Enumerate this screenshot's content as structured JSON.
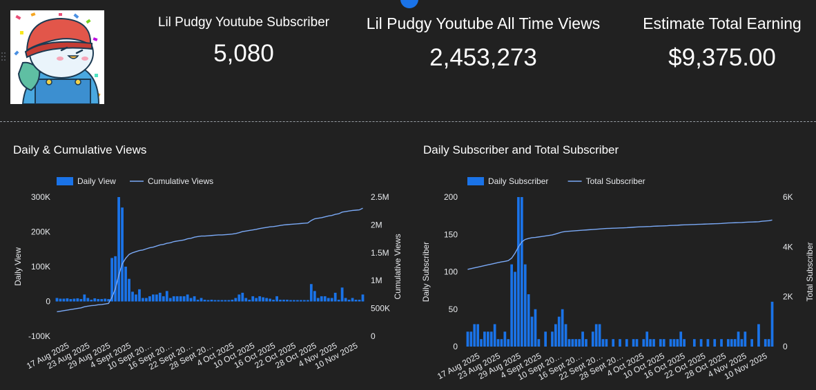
{
  "kpis": [
    {
      "label": "Lil Pudgy Youtube Subscriber",
      "value": "5,080"
    },
    {
      "label": "Lil Pudgy Youtube All Time Views",
      "value": "2,453,273"
    },
    {
      "label": "Estimate Total Earning",
      "value": "$9,375.00"
    }
  ],
  "colors": {
    "background": "#212121",
    "bar": "#1a73e8",
    "line": "#7baaf7",
    "text": "#e8eaed"
  },
  "icons": {
    "avatar": "lil-pudgy-penguin-avatar",
    "handle": "drag-handle-icon"
  },
  "chart_data": [
    {
      "type": "bar",
      "title": "Daily & Cumulative Views",
      "x_tick_labels": [
        "17 Aug 2025",
        "23 Aug 2025",
        "29 Aug 2025",
        "4 Sept 2025",
        "10 Sept 20…",
        "16 Sept 20…",
        "22 Sept 20…",
        "28 Sept 20…",
        "4 Oct 2025",
        "10 Oct 2025",
        "16 Oct 2025",
        "22 Oct 2025",
        "28 Oct 2025",
        "4 Nov 2025",
        "10 Nov 2025"
      ],
      "left_axis": {
        "label": "Daily View",
        "ticks": [
          "300K",
          "200K",
          "100K",
          "0",
          "-100K"
        ],
        "range": [
          -100000,
          300000
        ]
      },
      "right_axis": {
        "label": "Cumulative Views",
        "ticks": [
          "2.5M",
          "2M",
          "1.5M",
          "1M",
          "500K",
          "0"
        ],
        "range": [
          0,
          2500000
        ]
      },
      "legend": "top-left",
      "grid": false,
      "series": [
        {
          "name": "Daily View",
          "type": "bar",
          "values": [
            10000,
            8000,
            8000,
            9000,
            7000,
            8000,
            9000,
            7000,
            20000,
            10000,
            5000,
            9000,
            7000,
            7000,
            8000,
            7000,
            125000,
            130000,
            300000,
            270000,
            100000,
            65000,
            28000,
            20000,
            35000,
            10000,
            10000,
            15000,
            20000,
            20000,
            25000,
            15000,
            30000,
            10000,
            15000,
            15000,
            15000,
            15000,
            20000,
            10000,
            15000,
            5000,
            10000,
            5000,
            4000,
            5000,
            4000,
            4000,
            4000,
            4000,
            4000,
            5000,
            10000,
            20000,
            25000,
            10000,
            5000,
            15000,
            10000,
            15000,
            12000,
            10000,
            8000,
            5000,
            15000,
            5000,
            5000,
            5000,
            4000,
            4000,
            4000,
            4000,
            4000,
            4000,
            50000,
            30000,
            10000,
            15000,
            15000,
            10000,
            10000,
            25000,
            5000,
            40000,
            10000,
            5000,
            10000,
            5000,
            5000,
            20000
          ]
        },
        {
          "name": "Cumulative Views",
          "type": "line",
          "values": [
            440000,
            450000,
            460000,
            470000,
            480000,
            490000,
            500000,
            510000,
            530000,
            540000,
            550000,
            555000,
            565000,
            570000,
            580000,
            590000,
            700000,
            850000,
            1100000,
            1300000,
            1400000,
            1470000,
            1500000,
            1520000,
            1540000,
            1550000,
            1570000,
            1590000,
            1600000,
            1620000,
            1640000,
            1650000,
            1670000,
            1680000,
            1700000,
            1710000,
            1720000,
            1730000,
            1750000,
            1760000,
            1780000,
            1790000,
            1800000,
            1800000,
            1805000,
            1810000,
            1815000,
            1820000,
            1820000,
            1825000,
            1830000,
            1835000,
            1845000,
            1860000,
            1880000,
            1890000,
            1900000,
            1910000,
            1920000,
            1935000,
            1945000,
            1955000,
            1965000,
            1970000,
            1980000,
            1990000,
            2000000,
            2005000,
            2010000,
            2015000,
            2020000,
            2025000,
            2030000,
            2035000,
            2080000,
            2110000,
            2120000,
            2130000,
            2145000,
            2160000,
            2170000,
            2190000,
            2200000,
            2230000,
            2240000,
            2250000,
            2260000,
            2265000,
            2270000,
            2300000
          ]
        }
      ]
    },
    {
      "type": "bar",
      "title": "Daily Subscriber and Total Subscriber",
      "x_tick_labels": [
        "17 Aug 2025",
        "23 Aug 2025",
        "29 Aug 2025",
        "4 Sept 2025",
        "10 Sept 20…",
        "16 Sept 20…",
        "22 Sept 20…",
        "28 Sept 20…",
        "4 Oct 2025",
        "10 Oct 2025",
        "16 Oct 2025",
        "22 Oct 2025",
        "28 Oct 2025",
        "4 Nov 2025",
        "10 Nov 2025"
      ],
      "left_axis": {
        "label": "Daily Subscriber",
        "ticks": [
          "200",
          "150",
          "100",
          "50",
          "0"
        ],
        "range": [
          0,
          200
        ]
      },
      "right_axis": {
        "label": "Total Subscriber",
        "ticks": [
          "6K",
          "4K",
          "2K",
          "0"
        ],
        "range": [
          0,
          6000
        ]
      },
      "legend": "top-left",
      "grid": false,
      "series": [
        {
          "name": "Daily Subscriber",
          "type": "bar",
          "values": [
            20,
            20,
            30,
            30,
            10,
            20,
            20,
            20,
            30,
            10,
            10,
            20,
            10,
            110,
            100,
            200,
            200,
            110,
            70,
            40,
            50,
            10,
            0,
            20,
            0,
            20,
            30,
            40,
            50,
            30,
            10,
            10,
            10,
            10,
            20,
            10,
            0,
            20,
            30,
            30,
            10,
            10,
            0,
            10,
            0,
            10,
            0,
            10,
            0,
            10,
            10,
            0,
            10,
            20,
            10,
            10,
            0,
            10,
            10,
            0,
            10,
            10,
            10,
            20,
            10,
            0,
            0,
            10,
            0,
            10,
            0,
            10,
            0,
            10,
            0,
            10,
            0,
            10,
            10,
            10,
            20,
            10,
            20,
            0,
            10,
            0,
            30,
            0,
            10,
            10,
            60
          ]
        },
        {
          "name": "Total Subscriber",
          "type": "line",
          "values": [
            3100,
            3130,
            3160,
            3190,
            3220,
            3250,
            3280,
            3310,
            3340,
            3370,
            3400,
            3420,
            3450,
            3550,
            3750,
            4000,
            4200,
            4300,
            4340,
            4370,
            4380,
            4400,
            4420,
            4440,
            4460,
            4480,
            4520,
            4560,
            4600,
            4620,
            4630,
            4640,
            4650,
            4660,
            4670,
            4680,
            4690,
            4700,
            4710,
            4720,
            4730,
            4740,
            4745,
            4750,
            4755,
            4760,
            4765,
            4770,
            4780,
            4790,
            4800,
            4805,
            4810,
            4815,
            4820,
            4830,
            4835,
            4840,
            4845,
            4850,
            4860,
            4865,
            4870,
            4880,
            4885,
            4890,
            4895,
            4900,
            4905,
            4910,
            4915,
            4920,
            4925,
            4930,
            4935,
            4940,
            4950,
            4960,
            4965,
            4970,
            4975,
            4980,
            4990,
            4995,
            5000,
            5005,
            5010,
            5030,
            5040,
            5050,
            5080
          ]
        }
      ]
    }
  ]
}
